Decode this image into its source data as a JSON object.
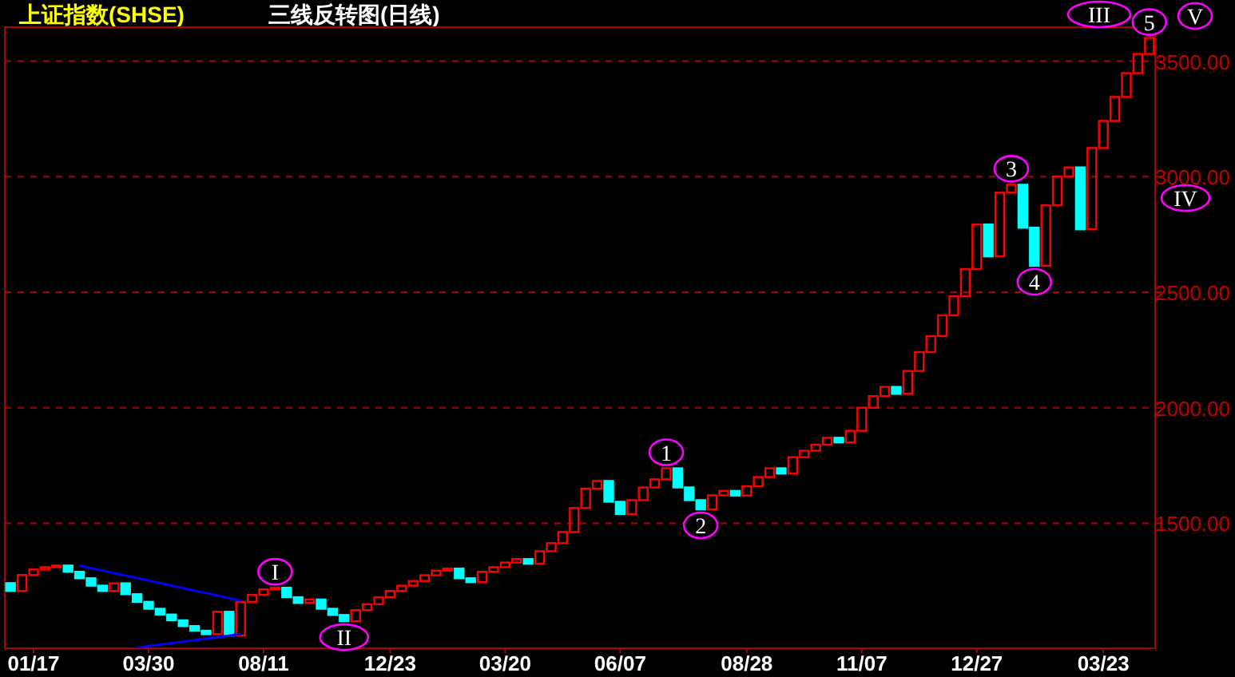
{
  "chart_data": {
    "type": "bar",
    "title": "上证指数(SHSE)",
    "subtitle": "三线反转图(日线)",
    "categories": [
      null,
      null,
      "01/17",
      null,
      null,
      null,
      null,
      null,
      null,
      null,
      null,
      null,
      "03/30",
      null,
      null,
      null,
      null,
      null,
      null,
      null,
      null,
      null,
      "08/11",
      null,
      null,
      null,
      null,
      null,
      null,
      null,
      null,
      null,
      null,
      "12/23",
      null,
      null,
      null,
      null,
      null,
      null,
      null,
      null,
      null,
      "03/20",
      null,
      null,
      null,
      null,
      null,
      null,
      null,
      null,
      null,
      "06/07",
      null,
      null,
      null,
      null,
      null,
      null,
      null,
      null,
      null,
      null,
      "08/28",
      null,
      null,
      null,
      null,
      null,
      null,
      null,
      null,
      null,
      "11/07",
      null,
      null,
      null,
      null,
      null,
      null,
      null,
      null,
      null,
      "12/27",
      null,
      null,
      null,
      null,
      null,
      null,
      null,
      null,
      null,
      null,
      "03/23",
      null,
      null,
      null,
      null
    ],
    "base": [
      1241,
      1207,
      1276,
      1300,
      1310,
      1317,
      1290,
      1262,
      1230,
      1207,
      1240,
      1193,
      1160,
      1130,
      1105,
      1080,
      1055,
      1035,
      1020,
      1117,
      1014,
      1160,
      1190,
      1214,
      1221,
      1180,
      1155,
      1170,
      1130,
      1103,
      1076,
      1124,
      1150,
      1180,
      1207,
      1230,
      1250,
      1275,
      1295,
      1304,
      1262,
      1245,
      1290,
      1310,
      1330,
      1345,
      1325,
      1379,
      1414,
      1462,
      1566,
      1650,
      1683,
      1593,
      1540,
      1600,
      1655,
      1690,
      1738,
      1655,
      1600,
      1560,
      1621,
      1640,
      1620,
      1660,
      1700,
      1738,
      1715,
      1786,
      1814,
      1840,
      1870,
      1850,
      1900,
      2000,
      2050,
      2090,
      2060,
      2159,
      2241,
      2310,
      2400,
      2482,
      2600,
      2793,
      2655,
      2931,
      2965,
      2779,
      2614,
      2876,
      3000,
      3040,
      2772,
      3124,
      3241,
      3345,
      3448,
      3531
    ],
    "values": [
      -34,
      69,
      24,
      10,
      7,
      -27,
      -28,
      -32,
      -23,
      33,
      -47,
      -33,
      -30,
      -25,
      -25,
      -25,
      -20,
      -15,
      97,
      -103,
      146,
      30,
      24,
      7,
      -41,
      -25,
      15,
      -40,
      -27,
      -27,
      48,
      26,
      30,
      27,
      23,
      20,
      25,
      20,
      9,
      -42,
      -17,
      45,
      20,
      20,
      15,
      -20,
      54,
      35,
      48,
      104,
      84,
      33,
      -90,
      -53,
      60,
      55,
      35,
      48,
      -83,
      -55,
      -40,
      61,
      19,
      -20,
      40,
      40,
      38,
      -23,
      71,
      28,
      26,
      30,
      -20,
      50,
      100,
      50,
      40,
      -30,
      99,
      82,
      69,
      90,
      82,
      118,
      193,
      -138,
      276,
      34,
      -186,
      -165,
      262,
      124,
      40,
      -268,
      352,
      117,
      104,
      103,
      83,
      69
    ],
    "colors": [
      "#00ffff",
      "#ff0000",
      "#ff0000",
      "#ff0000",
      "#ff0000",
      "#00ffff",
      "#00ffff",
      "#00ffff",
      "#00ffff",
      "#ff0000",
      "#00ffff",
      "#00ffff",
      "#00ffff",
      "#00ffff",
      "#00ffff",
      "#00ffff",
      "#00ffff",
      "#00ffff",
      "#ff0000",
      "#00ffff",
      "#ff0000",
      "#ff0000",
      "#ff0000",
      "#ff0000",
      "#00ffff",
      "#00ffff",
      "#ff0000",
      "#00ffff",
      "#00ffff",
      "#00ffff",
      "#ff0000",
      "#ff0000",
      "#ff0000",
      "#ff0000",
      "#ff0000",
      "#ff0000",
      "#ff0000",
      "#ff0000",
      "#ff0000",
      "#00ffff",
      "#00ffff",
      "#ff0000",
      "#ff0000",
      "#ff0000",
      "#ff0000",
      "#00ffff",
      "#ff0000",
      "#ff0000",
      "#ff0000",
      "#ff0000",
      "#ff0000",
      "#ff0000",
      "#00ffff",
      "#00ffff",
      "#ff0000",
      "#ff0000",
      "#ff0000",
      "#ff0000",
      "#00ffff",
      "#00ffff",
      "#00ffff",
      "#ff0000",
      "#ff0000",
      "#00ffff",
      "#ff0000",
      "#ff0000",
      "#ff0000",
      "#00ffff",
      "#ff0000",
      "#ff0000",
      "#ff0000",
      "#ff0000",
      "#00ffff",
      "#ff0000",
      "#ff0000",
      "#ff0000",
      "#ff0000",
      "#00ffff",
      "#ff0000",
      "#ff0000",
      "#ff0000",
      "#ff0000",
      "#ff0000",
      "#ff0000",
      "#ff0000",
      "#00ffff",
      "#ff0000",
      "#ff0000",
      "#00ffff",
      "#00ffff",
      "#ff0000",
      "#ff0000",
      "#ff0000",
      "#00ffff",
      "#ff0000",
      "#ff0000",
      "#ff0000",
      "#ff0000",
      "#ff0000",
      "#ff0000"
    ],
    "series": [
      {
        "type": "line",
        "color": "#0000ff",
        "values": [
          null,
          null,
          null,
          null,
          null,
          null,
          1317,
          null,
          null,
          null,
          null,
          null,
          null,
          null,
          null,
          null,
          null,
          null,
          null,
          null,
          1165,
          null,
          null,
          null,
          null,
          null,
          null,
          null,
          null,
          null,
          null,
          null,
          null,
          null,
          null,
          null,
          null,
          null,
          null,
          null,
          null,
          null,
          null,
          null,
          null,
          null,
          null,
          null,
          null,
          null,
          null,
          null,
          null,
          null,
          null,
          null,
          null,
          null,
          null,
          null,
          null,
          null,
          null,
          null,
          null,
          null,
          null,
          null,
          null,
          null,
          null,
          null,
          null,
          null,
          null,
          null,
          null,
          null,
          null,
          null,
          null,
          null,
          null,
          null,
          null,
          null,
          null,
          null,
          null,
          null,
          null,
          null,
          null,
          null,
          null,
          null,
          null,
          null,
          null,
          null
        ]
      },
      {
        "type": "line",
        "color": "#0000ff",
        "values": [
          null,
          null,
          null,
          null,
          null,
          null,
          null,
          null,
          null,
          null,
          null,
          962,
          null,
          null,
          null,
          null,
          null,
          null,
          null,
          null,
          1020,
          null,
          null,
          null,
          null,
          null,
          null,
          null,
          null,
          null,
          null,
          null,
          null,
          null,
          null,
          null,
          null,
          null,
          null,
          null,
          null,
          null,
          null,
          null,
          null,
          null,
          null,
          null,
          null,
          null,
          null,
          null,
          null,
          null,
          null,
          null,
          null,
          null,
          null,
          null,
          null,
          null,
          null,
          null,
          null,
          null,
          null,
          null,
          null,
          null,
          null,
          null,
          null,
          null,
          null,
          null,
          null,
          null,
          null,
          null,
          null,
          null,
          null,
          null,
          null,
          null,
          null,
          null,
          null,
          null,
          null,
          null,
          null,
          null,
          null,
          null,
          null,
          null,
          null,
          null
        ]
      }
    ],
    "ylim": [
      959,
      3647
    ],
    "yticks": [
      {
        "value": 1500,
        "label": "1500.00"
      },
      {
        "value": 2000,
        "label": "2000.00"
      },
      {
        "value": 2500,
        "label": "2500.00"
      },
      {
        "value": 3000,
        "label": "3000.00"
      },
      {
        "value": 3500,
        "label": "3500.00"
      }
    ],
    "grid": "y",
    "annotations": [
      {
        "text": "I",
        "y": 1221
      },
      {
        "text": "II",
        "y": 1076
      },
      {
        "text": "1",
        "y": 1738
      },
      {
        "text": "2",
        "y": 1560
      },
      {
        "text": "3",
        "y": 2965
      },
      {
        "text": "4",
        "y": 2614
      },
      {
        "text": "5",
        "y": 3600
      },
      "III",
      "V",
      "IV"
    ]
  }
}
